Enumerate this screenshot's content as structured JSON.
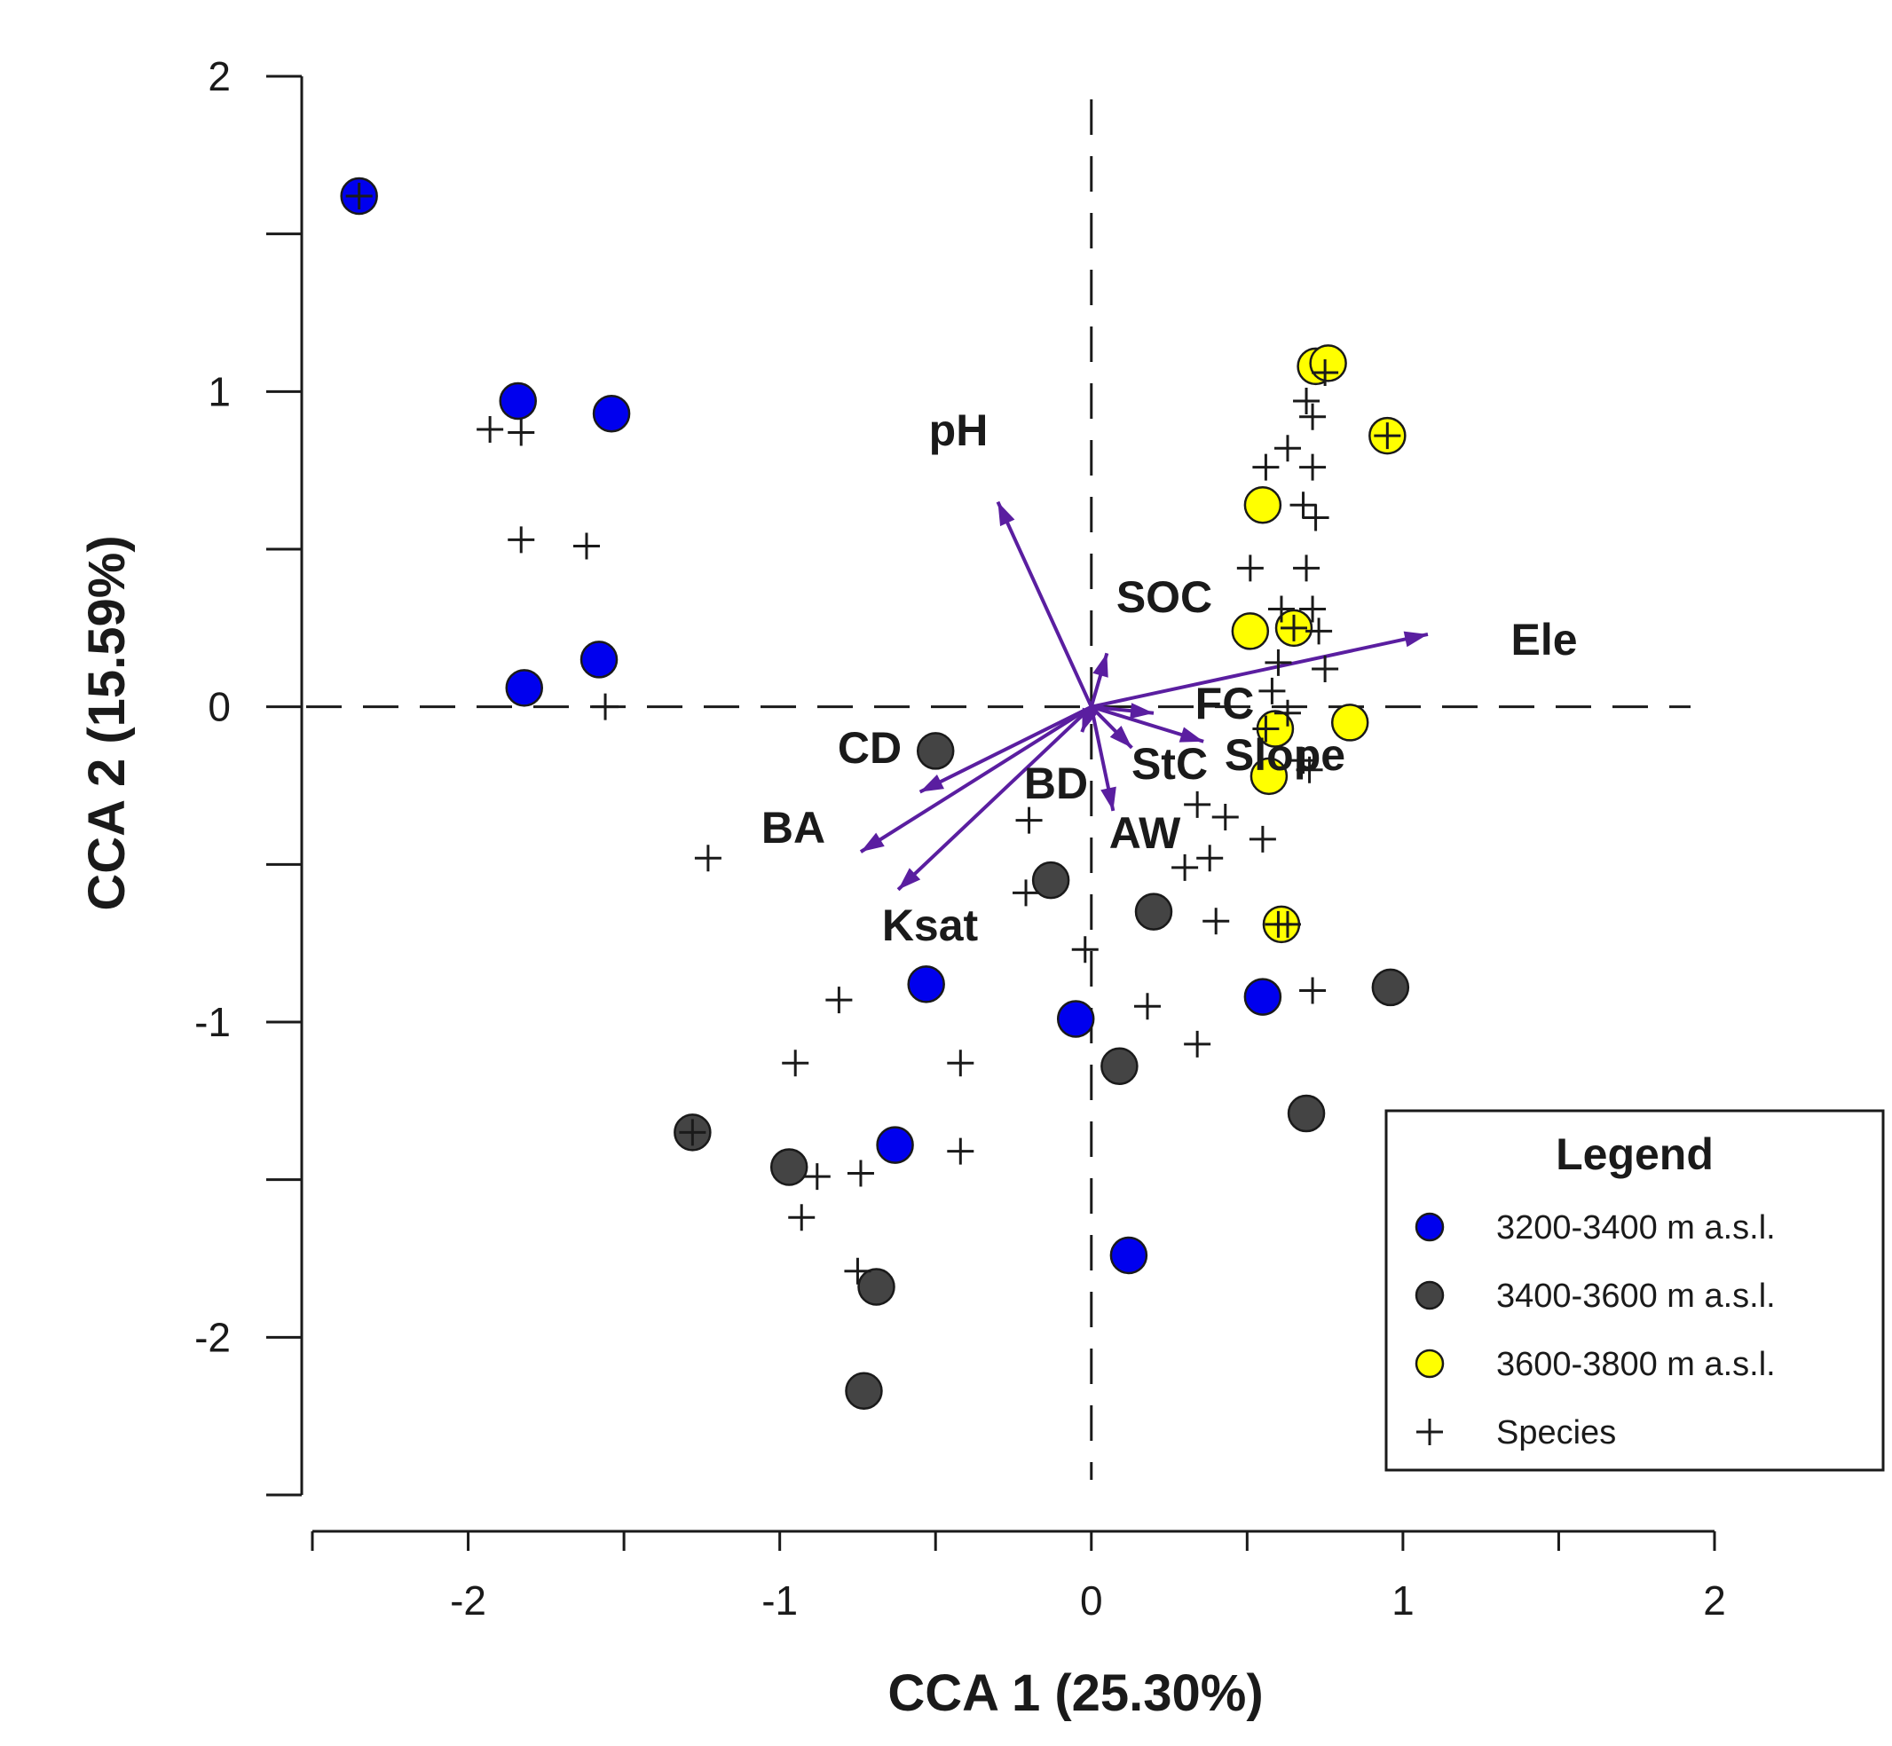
{
  "chart_data": {
    "type": "scatter",
    "title": "",
    "xlabel": "CCA 1 (25.30%)",
    "ylabel": "CCA 2 (15.59%)",
    "xlim": [
      -2.5,
      2.0
    ],
    "ylim": [
      -2.5,
      2.0
    ],
    "x_tick_labels": [
      "-2",
      "-1",
      "0",
      "1",
      "2"
    ],
    "y_tick_labels": [
      "2",
      "1",
      "0",
      "-1",
      "-2"
    ],
    "x_ticks": [
      -2.5,
      -2.0,
      -1.5,
      -1.0,
      -0.5,
      0.0,
      0.5,
      1.0,
      1.5,
      2.0
    ],
    "y_ticks": [
      2.0,
      1.5,
      1.0,
      0.5,
      0.0,
      -0.5,
      -1.0,
      -1.5,
      -2.0,
      -2.5
    ],
    "x_labeled": [
      -2,
      -1,
      0,
      1,
      2
    ],
    "y_labeled": [
      2,
      1,
      0,
      -1,
      -2
    ],
    "reference_lines": {
      "x": 0,
      "y": 0,
      "style": "dashed"
    },
    "grid": false,
    "legend": {
      "title": "Legend",
      "position": "bottom-right",
      "entries": [
        "3200-3400 m a.s.l.",
        "3400-3600 m a.s.l.",
        "3600-3800 m a.s.l.",
        "Species"
      ]
    },
    "series": [
      {
        "name": "3200-3400 m a.s.l.",
        "color": "#0000ee",
        "points": [
          [
            -2.35,
            1.62
          ],
          [
            -1.84,
            0.97
          ],
          [
            -1.54,
            0.93
          ],
          [
            -1.58,
            0.15
          ],
          [
            -1.82,
            0.06
          ],
          [
            -0.53,
            -0.88
          ],
          [
            -0.05,
            -0.99
          ],
          [
            0.55,
            -0.92
          ],
          [
            -0.63,
            -1.39
          ],
          [
            0.12,
            -1.74
          ]
        ]
      },
      {
        "name": "3400-3600 m a.s.l.",
        "color": "#444444",
        "points": [
          [
            -0.5,
            -0.14
          ],
          [
            -0.13,
            -0.55
          ],
          [
            0.2,
            -0.65
          ],
          [
            0.09,
            -1.14
          ],
          [
            0.96,
            -0.89
          ],
          [
            0.69,
            -1.29
          ],
          [
            -1.28,
            -1.35
          ],
          [
            -0.97,
            -1.46
          ],
          [
            -0.69,
            -1.84
          ],
          [
            -0.73,
            -2.17
          ]
        ]
      },
      {
        "name": "3600-3800 m a.s.l.",
        "color": "#ffff00",
        "points": [
          [
            0.72,
            1.08
          ],
          [
            0.76,
            1.09
          ],
          [
            0.95,
            0.86
          ],
          [
            0.55,
            0.64
          ],
          [
            0.51,
            0.24
          ],
          [
            0.65,
            0.25
          ],
          [
            0.59,
            -0.07
          ],
          [
            0.83,
            -0.05
          ],
          [
            0.57,
            -0.22
          ],
          [
            0.61,
            -0.69
          ]
        ]
      },
      {
        "name": "Species",
        "marker": "plus",
        "points": [
          [
            -2.35,
            1.62
          ],
          [
            -1.93,
            0.88
          ],
          [
            -1.83,
            0.87
          ],
          [
            -1.83,
            0.53
          ],
          [
            -1.62,
            0.51
          ],
          [
            -1.56,
            0.0
          ],
          [
            -1.23,
            -0.48
          ],
          [
            -0.2,
            -0.36
          ],
          [
            -0.21,
            -0.59
          ],
          [
            -0.02,
            -0.77
          ],
          [
            -0.81,
            -0.93
          ],
          [
            -0.95,
            -1.13
          ],
          [
            -0.42,
            -1.13
          ],
          [
            0.18,
            -0.95
          ],
          [
            0.34,
            -1.07
          ],
          [
            -0.42,
            -1.41
          ],
          [
            -0.88,
            -1.49
          ],
          [
            -0.74,
            -1.48
          ],
          [
            -0.93,
            -1.62
          ],
          [
            -0.75,
            -1.79
          ],
          [
            -1.28,
            -1.35
          ],
          [
            0.34,
            -0.31
          ],
          [
            0.43,
            -0.35
          ],
          [
            0.55,
            -0.42
          ],
          [
            0.38,
            -0.48
          ],
          [
            0.3,
            -0.51
          ],
          [
            0.4,
            -0.68
          ],
          [
            0.6,
            -0.69
          ],
          [
            0.63,
            -0.69
          ],
          [
            0.71,
            -0.9
          ],
          [
            0.95,
            0.86
          ],
          [
            0.75,
            1.06
          ],
          [
            0.69,
            0.97
          ],
          [
            0.71,
            0.92
          ],
          [
            0.63,
            0.82
          ],
          [
            0.56,
            0.76
          ],
          [
            0.71,
            0.76
          ],
          [
            0.68,
            0.64
          ],
          [
            0.72,
            0.6
          ],
          [
            0.51,
            0.44
          ],
          [
            0.69,
            0.44
          ],
          [
            0.61,
            0.31
          ],
          [
            0.71,
            0.31
          ],
          [
            0.65,
            0.25
          ],
          [
            0.73,
            0.24
          ],
          [
            0.6,
            0.14
          ],
          [
            0.75,
            0.12
          ],
          [
            0.58,
            0.05
          ],
          [
            0.63,
            -0.02
          ],
          [
            0.56,
            -0.07
          ],
          [
            0.68,
            -0.17
          ],
          [
            0.7,
            -0.2
          ]
        ]
      }
    ],
    "vectors": [
      {
        "label": "pH",
        "x": -0.3,
        "y": 0.65
      },
      {
        "label": "SOC",
        "x": 0.05,
        "y": 0.17
      },
      {
        "label": "Ele",
        "x": 1.08,
        "y": 0.23
      },
      {
        "label": "FC",
        "x": 0.2,
        "y": -0.02
      },
      {
        "label": "Slope",
        "x": 0.36,
        "y": -0.11
      },
      {
        "label": "StC",
        "x": 0.13,
        "y": -0.13
      },
      {
        "label": "AW",
        "x": 0.07,
        "y": -0.33
      },
      {
        "label": "BD",
        "x": -0.03,
        "y": -0.08
      },
      {
        "label": "CD",
        "x": -0.55,
        "y": -0.27
      },
      {
        "label": "BA",
        "x": -0.74,
        "y": -0.46
      },
      {
        "label": "Ksat",
        "x": -0.62,
        "y": -0.58
      }
    ],
    "vector_color": "#5a1ea0"
  }
}
